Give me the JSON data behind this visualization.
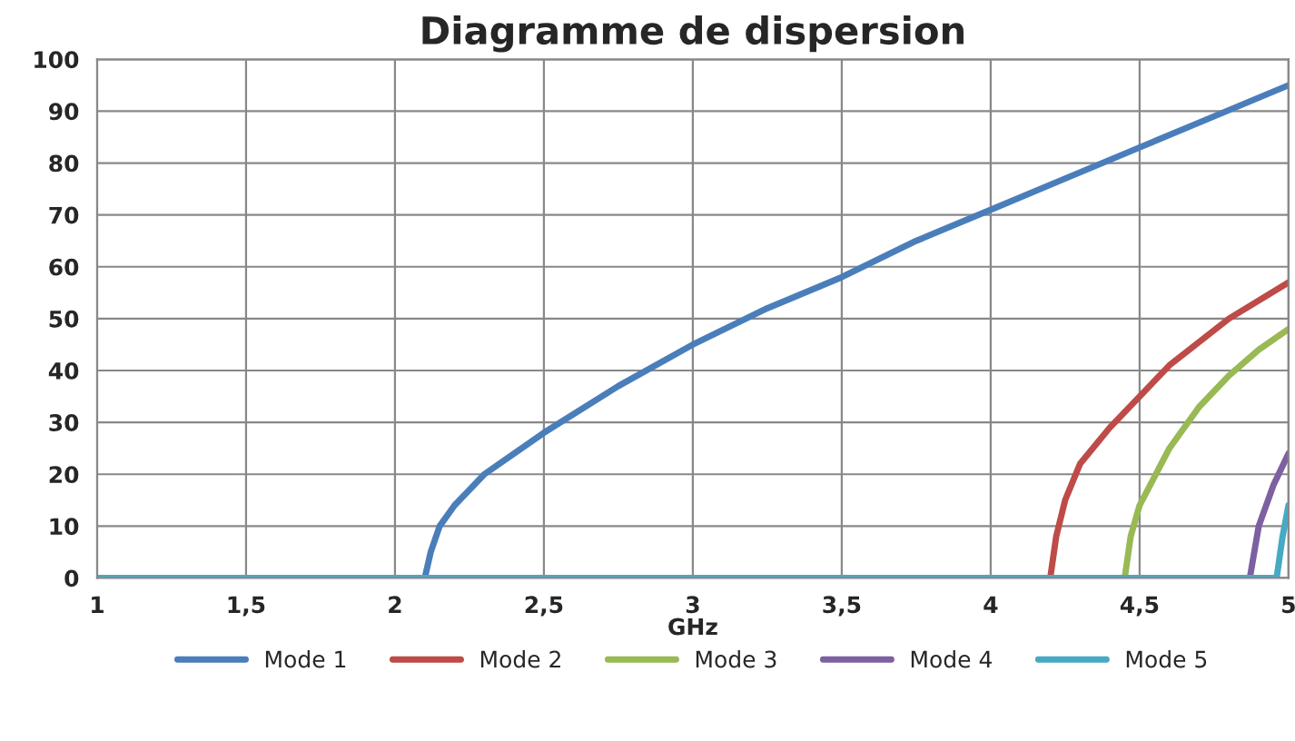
{
  "chart_data": {
    "type": "line",
    "title": "Diagramme de dispersion",
    "xlabel": "GHz",
    "xlim": [
      1,
      5
    ],
    "ylim": [
      0,
      100
    ],
    "xticks": [
      1,
      {
        "value": 1.5,
        "label": "1,5"
      },
      2,
      {
        "value": 2.5,
        "label": "2,5"
      },
      3,
      {
        "value": 3.5,
        "label": "3,5"
      },
      4,
      {
        "value": 4.5,
        "label": "4,5"
      },
      5
    ],
    "yticks": [
      0,
      10,
      20,
      30,
      40,
      50,
      60,
      70,
      80,
      90,
      100
    ],
    "grid": true,
    "legend": "bottom",
    "marker": "none",
    "line_style": "solid",
    "series": [
      {
        "name": "Mode 1",
        "color": "#4a7ebb",
        "x": [
          1,
          2.1,
          2.12,
          2.15,
          2.2,
          2.3,
          2.5,
          2.75,
          3,
          3.25,
          3.5,
          3.75,
          4,
          4.25,
          4.5,
          4.75,
          5
        ],
        "values": [
          0,
          0,
          5,
          10,
          14,
          20,
          28,
          37,
          45,
          52,
          58,
          65,
          71,
          77,
          83,
          89,
          95
        ]
      },
      {
        "name": "Mode 2",
        "color": "#be4b48",
        "x": [
          4.2,
          4.22,
          4.25,
          4.3,
          4.4,
          4.5,
          4.6,
          4.8,
          5
        ],
        "values": [
          0,
          8,
          15,
          22,
          29,
          35,
          41,
          50,
          57
        ]
      },
      {
        "name": "Mode 3",
        "color": "#98b954",
        "x": [
          4.45,
          4.47,
          4.5,
          4.6,
          4.7,
          4.8,
          4.9,
          5
        ],
        "values": [
          0,
          8,
          14,
          25,
          33,
          39,
          44,
          48
        ]
      },
      {
        "name": "Mode 4",
        "color": "#7d60a0",
        "x": [
          4.87,
          4.9,
          4.95,
          5
        ],
        "values": [
          0,
          10,
          18,
          24
        ]
      },
      {
        "name": "Mode 5",
        "color": "#46aac5",
        "x": [
          1,
          4.96,
          4.98,
          5
        ],
        "values": [
          0,
          0,
          8,
          14
        ]
      }
    ]
  }
}
